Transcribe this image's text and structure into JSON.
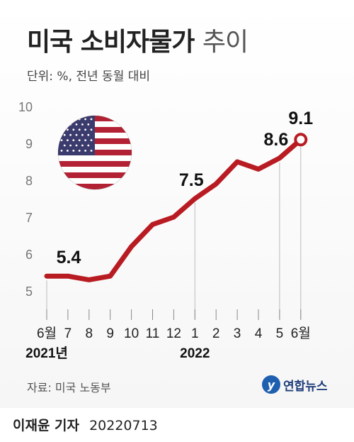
{
  "title": {
    "main": "미국 소비자물가",
    "light": "추이"
  },
  "subtitle": "단위: %, 전년 동월 대비",
  "source": "자료: 미국 노동부",
  "logo": {
    "text": "연합뉴스",
    "mark": "y"
  },
  "footer": {
    "author": "이재윤 기자",
    "date": "20220713"
  },
  "colors": {
    "line": "#b81c22",
    "grid": "#bbbbbb",
    "flag_red": "#b22234",
    "flag_blue": "#3c3b6e"
  },
  "flag_icon": "us-flag-icon",
  "chart_data": {
    "type": "line",
    "categories": [
      "6월",
      "7",
      "8",
      "9",
      "10",
      "11",
      "12",
      "1",
      "2",
      "3",
      "4",
      "5",
      "6월"
    ],
    "year_labels": [
      {
        "index": 0,
        "label": "2021년"
      },
      {
        "index": 7,
        "label": "2022"
      }
    ],
    "values": [
      5.4,
      5.4,
      5.3,
      5.4,
      6.2,
      6.8,
      7.0,
      7.5,
      7.9,
      8.5,
      8.3,
      8.6,
      9.1
    ],
    "labeled_points": [
      {
        "index": 0,
        "label": "5.4"
      },
      {
        "index": 7,
        "label": "7.5"
      },
      {
        "index": 11,
        "label": "8.6"
      },
      {
        "index": 12,
        "label": "9.1"
      }
    ],
    "y_ticks": [
      "10",
      "9",
      "8",
      "7",
      "6",
      "5"
    ],
    "ylim": [
      5,
      10
    ],
    "grid": false,
    "legend": "none"
  }
}
